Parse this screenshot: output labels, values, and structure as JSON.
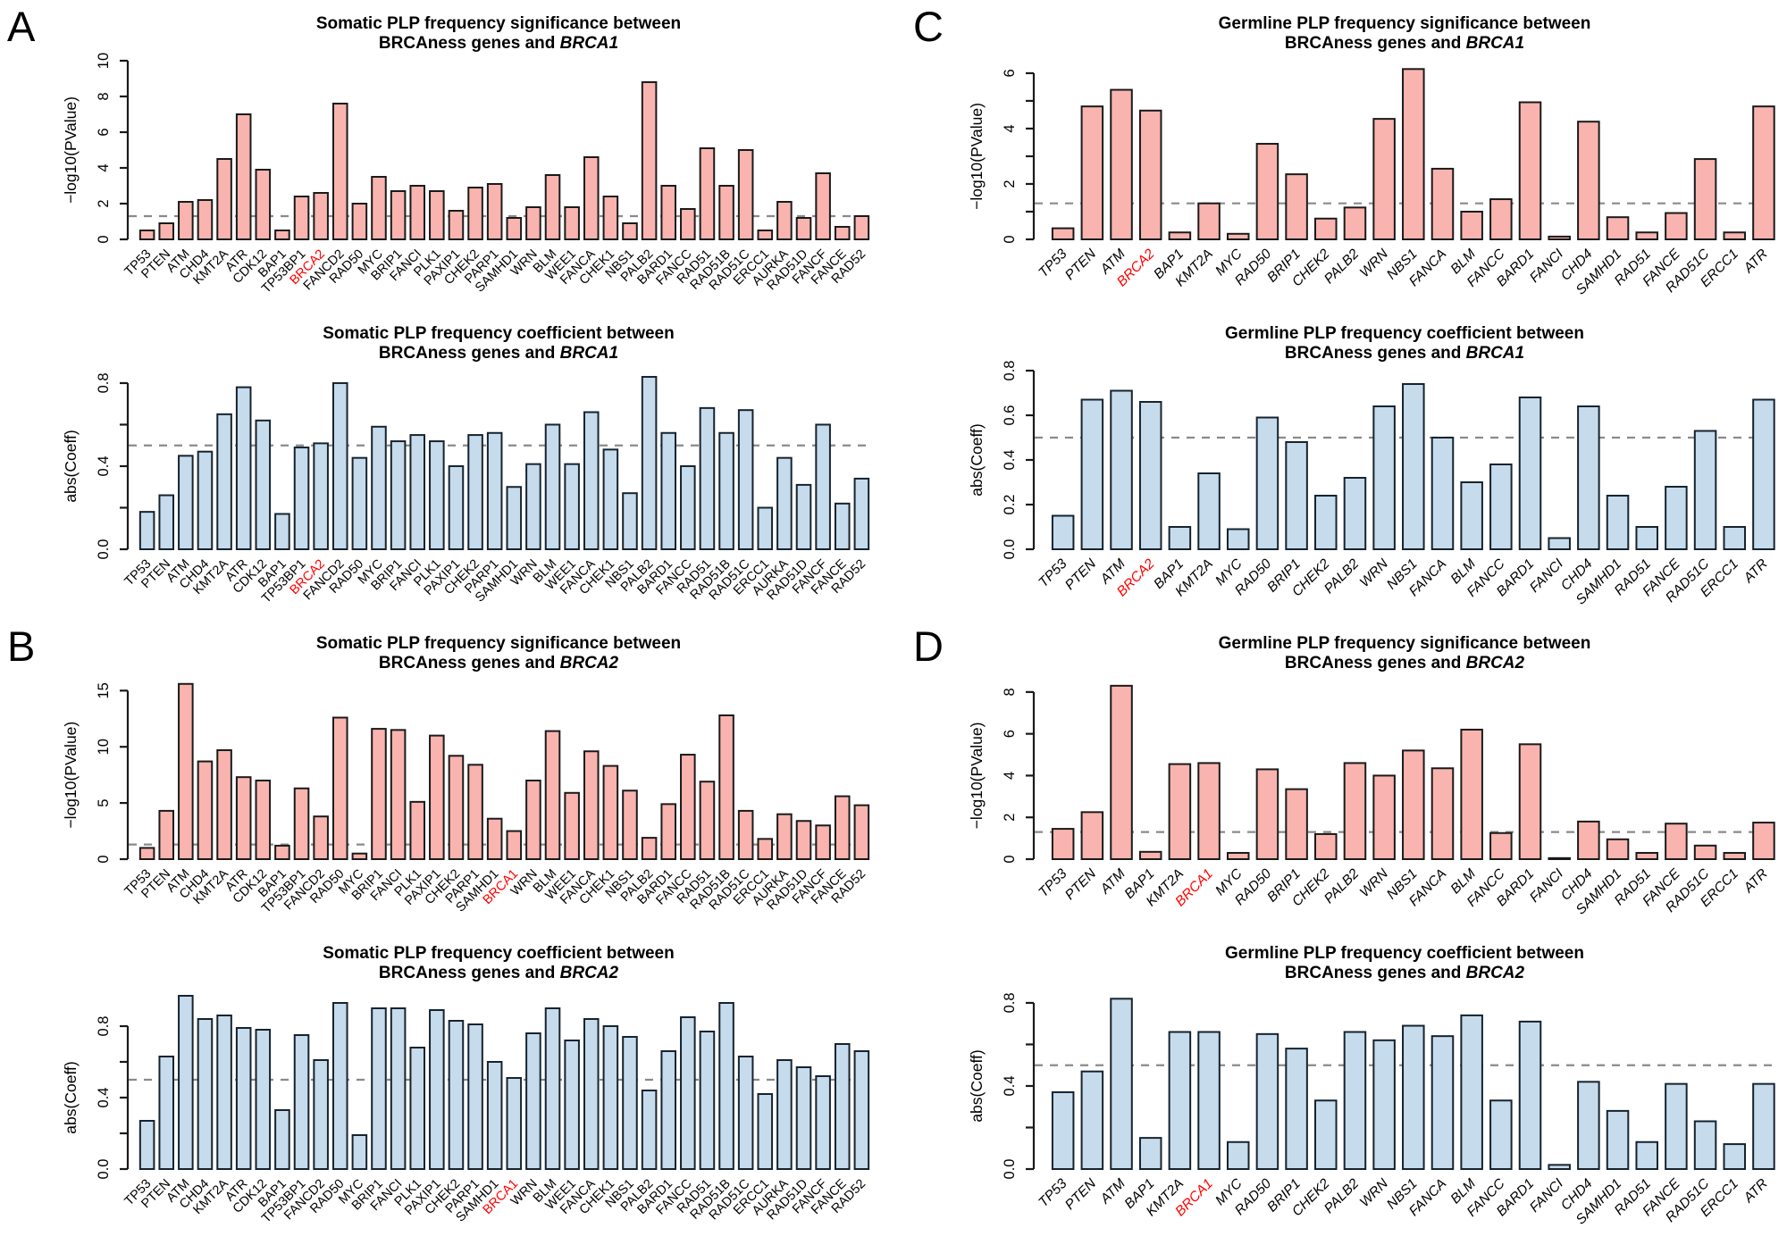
{
  "figure": {
    "background": "#ffffff",
    "colors": {
      "significance_bar_fill": "#F9B4AF",
      "significance_bar_stroke": "#1a1a1a",
      "coefficient_bar_fill": "#C6DBEC",
      "coefficient_bar_stroke": "#16232e",
      "axis": "#1a1a1a",
      "threshold_line": "#8a8a8a",
      "highlight_label": "#FF0000",
      "text": "#000000"
    }
  },
  "panels": [
    {
      "letter": "A"
    },
    {
      "letter": "B"
    },
    {
      "letter": "C"
    },
    {
      "letter": "D"
    }
  ],
  "chart_data": [
    {
      "id": "A-significance",
      "panel": "A",
      "type": "bar",
      "kind": "significance",
      "title_line1": "Somatic PLP frequency significance between",
      "title_line2_prefix": "BRCAness genes and ",
      "title_gene": "BRCA1",
      "ylabel": "−log10(PValue)",
      "ymax": 10,
      "yticks": [
        0,
        2,
        4,
        6,
        8,
        10
      ],
      "ytick_labels": [
        "0",
        "2",
        "4",
        "6",
        "8",
        "10"
      ],
      "yticks_minor": [],
      "threshold": 1.3,
      "grid": false,
      "italic_categories": false,
      "highlight_category": "BRCA2",
      "categories": [
        "TP53",
        "PTEN",
        "ATM",
        "CHD4",
        "KMT2A",
        "ATR",
        "CDK12",
        "BAP1",
        "TP53BP1",
        "BRCA2",
        "FANCD2",
        "RAD50",
        "MYC",
        "BRIP1",
        "FANCI",
        "PLK1",
        "PAXIP1",
        "CHEK2",
        "PARP1",
        "SAMHD1",
        "WRN",
        "BLM",
        "WEE1",
        "FANCA",
        "CHEK1",
        "NBS1",
        "PALB2",
        "BARD1",
        "FANCC",
        "RAD51",
        "RAD51B",
        "RAD51C",
        "ERCC1",
        "AURKA",
        "RAD51D",
        "FANCF",
        "FANCE",
        "RAD52"
      ],
      "values": [
        0.5,
        0.9,
        2.1,
        2.2,
        4.5,
        7.0,
        3.9,
        0.5,
        2.4,
        2.6,
        7.6,
        2.0,
        3.5,
        2.7,
        3.0,
        2.7,
        1.6,
        2.9,
        3.1,
        1.2,
        1.8,
        3.6,
        1.8,
        4.6,
        2.4,
        0.9,
        8.8,
        3.0,
        1.7,
        5.1,
        3.0,
        5.0,
        0.5,
        2.1,
        1.2,
        3.7,
        0.7,
        1.3
      ]
    },
    {
      "id": "A-coefficient",
      "panel": "A",
      "type": "bar",
      "kind": "coefficient",
      "title_line1": "Somatic PLP frequency coefficient between",
      "title_line2_prefix": "BRCAness genes and ",
      "title_gene": "BRCA1",
      "ylabel": "abs(Coeff)",
      "ymax": 0.86,
      "yticks": [
        0,
        0.4,
        0.8
      ],
      "ytick_labels": [
        "0.0",
        "0.4",
        "0.8"
      ],
      "yticks_minor": [
        0.2,
        0.6
      ],
      "threshold": 0.5,
      "grid": false,
      "italic_categories": false,
      "highlight_category": "BRCA2",
      "categories": [
        "TP53",
        "PTEN",
        "ATM",
        "CHD4",
        "KMT2A",
        "ATR",
        "CDK12",
        "BAP1",
        "TP53BP1",
        "BRCA2",
        "FANCD2",
        "RAD50",
        "MYC",
        "BRIP1",
        "FANCI",
        "PLK1",
        "PAXIP1",
        "CHEK2",
        "PARP1",
        "SAMHD1",
        "WRN",
        "BLM",
        "WEE1",
        "FANCA",
        "CHEK1",
        "NBS1",
        "PALB2",
        "BARD1",
        "FANCC",
        "RAD51",
        "RAD51B",
        "RAD51C",
        "ERCC1",
        "AURKA",
        "RAD51D",
        "FANCF",
        "FANCE",
        "RAD52"
      ],
      "values": [
        0.18,
        0.26,
        0.45,
        0.47,
        0.65,
        0.78,
        0.62,
        0.17,
        0.49,
        0.51,
        0.8,
        0.44,
        0.59,
        0.52,
        0.55,
        0.52,
        0.4,
        0.55,
        0.56,
        0.3,
        0.41,
        0.6,
        0.41,
        0.66,
        0.48,
        0.27,
        0.83,
        0.56,
        0.4,
        0.68,
        0.56,
        0.67,
        0.2,
        0.44,
        0.31,
        0.6,
        0.22,
        0.34
      ]
    },
    {
      "id": "B-significance",
      "panel": "B",
      "type": "bar",
      "kind": "significance",
      "title_line1": "Somatic PLP frequency significance between",
      "title_line2_prefix": "BRCAness genes and ",
      "title_gene": "BRCA2",
      "ylabel": "−log10(PValue)",
      "ymax": 15.9,
      "yticks": [
        0,
        5,
        10,
        15
      ],
      "ytick_labels": [
        "0",
        "5",
        "10",
        "15"
      ],
      "yticks_minor": [],
      "threshold": 1.3,
      "grid": false,
      "italic_categories": false,
      "highlight_category": "BRCA1",
      "categories": [
        "TP53",
        "PTEN",
        "ATM",
        "CHD4",
        "KMT2A",
        "ATR",
        "CDK12",
        "BAP1",
        "TP53BP1",
        "FANCD2",
        "RAD50",
        "MYC",
        "BRIP1",
        "FANCI",
        "PLK1",
        "PAXIP1",
        "CHEK2",
        "PARP1",
        "SAMHD1",
        "BRCA1",
        "WRN",
        "BLM",
        "WEE1",
        "FANCA",
        "CHEK1",
        "NBS1",
        "PALB2",
        "BARD1",
        "FANCC",
        "RAD51",
        "RAD51B",
        "RAD51C",
        "ERCC1",
        "AURKA",
        "RAD51D",
        "FANCF",
        "FANCE",
        "RAD52"
      ],
      "values": [
        1.0,
        4.3,
        15.6,
        8.7,
        9.7,
        7.3,
        7.0,
        1.2,
        6.3,
        3.8,
        12.6,
        0.5,
        11.6,
        11.5,
        5.1,
        11.0,
        9.2,
        8.4,
        3.6,
        2.5,
        7.0,
        11.4,
        5.9,
        9.6,
        8.3,
        6.1,
        1.9,
        4.9,
        9.3,
        6.9,
        12.8,
        4.3,
        1.8,
        4.0,
        3.4,
        3.0,
        5.6,
        4.8
      ]
    },
    {
      "id": "B-coefficient",
      "panel": "B",
      "type": "bar",
      "kind": "coefficient",
      "title_line1": "Somatic PLP frequency coefficient between",
      "title_line2_prefix": "BRCAness genes and ",
      "title_gene": "BRCA2",
      "ylabel": "abs(Coeff)",
      "ymax": 1.0,
      "yticks": [
        0,
        0.4,
        0.8
      ],
      "ytick_labels": [
        "0.0",
        "0.4",
        "0.8"
      ],
      "yticks_minor": [
        0.2,
        0.6
      ],
      "threshold": 0.5,
      "grid": false,
      "italic_categories": false,
      "highlight_category": "BRCA1",
      "categories": [
        "TP53",
        "PTEN",
        "ATM",
        "CHD4",
        "KMT2A",
        "ATR",
        "CDK12",
        "BAP1",
        "TP53BP1",
        "FANCD2",
        "RAD50",
        "MYC",
        "BRIP1",
        "FANCI",
        "PLK1",
        "PAXIP1",
        "CHEK2",
        "PARP1",
        "SAMHD1",
        "BRCA1",
        "WRN",
        "BLM",
        "WEE1",
        "FANCA",
        "CHEK1",
        "NBS1",
        "PALB2",
        "BARD1",
        "FANCC",
        "RAD51",
        "RAD51B",
        "RAD51C",
        "ERCC1",
        "AURKA",
        "RAD51D",
        "FANCF",
        "FANCE",
        "RAD52"
      ],
      "values": [
        0.27,
        0.63,
        0.97,
        0.84,
        0.86,
        0.79,
        0.78,
        0.33,
        0.75,
        0.61,
        0.93,
        0.19,
        0.9,
        0.9,
        0.68,
        0.89,
        0.83,
        0.81,
        0.6,
        0.51,
        0.76,
        0.9,
        0.72,
        0.84,
        0.8,
        0.74,
        0.44,
        0.66,
        0.85,
        0.77,
        0.93,
        0.63,
        0.42,
        0.61,
        0.57,
        0.52,
        0.7,
        0.66
      ]
    },
    {
      "id": "C-significance",
      "panel": "C",
      "type": "bar",
      "kind": "significance",
      "title_line1": "Germline PLP frequency significance between",
      "title_line2_prefix": "BRCAness genes and ",
      "title_gene": "BRCA1",
      "ylabel": "−log10(PValue)",
      "ymax": 6.45,
      "yticks": [
        0,
        2,
        4,
        6
      ],
      "ytick_labels": [
        "0",
        "2",
        "4",
        "6"
      ],
      "yticks_minor": [
        1,
        3,
        5
      ],
      "threshold": 1.3,
      "grid": false,
      "italic_categories": true,
      "highlight_category": "BRCA2",
      "categories": [
        "TP53",
        "PTEN",
        "ATM",
        "BRCA2",
        "BAP1",
        "KMT2A",
        "MYC",
        "RAD50",
        "BRIP1",
        "CHEK2",
        "PALB2",
        "WRN",
        "NBS1",
        "FANCA",
        "BLM",
        "FANCC",
        "BARD1",
        "FANCI",
        "CHD4",
        "SAMHD1",
        "RAD51",
        "FANCE",
        "RAD51C",
        "ERCC1",
        "ATR"
      ],
      "values": [
        0.4,
        4.8,
        5.4,
        4.65,
        0.25,
        1.3,
        0.2,
        3.45,
        2.35,
        0.75,
        1.15,
        4.35,
        6.15,
        2.55,
        1.0,
        1.45,
        4.95,
        0.1,
        4.25,
        0.8,
        0.25,
        0.95,
        2.9,
        0.25,
        4.8
      ]
    },
    {
      "id": "C-coefficient",
      "panel": "C",
      "type": "bar",
      "kind": "coefficient",
      "title_line1": "Germline PLP frequency coefficient between",
      "title_line2_prefix": "BRCAness genes and ",
      "title_gene": "BRCA1",
      "ylabel": "abs(Coeff)",
      "ymax": 0.8,
      "yticks": [
        0,
        0.2,
        0.4,
        0.6,
        0.8
      ],
      "ytick_labels": [
        "0.0",
        "0.2",
        "0.4",
        "0.6",
        "0.8"
      ],
      "yticks_minor": [],
      "threshold": 0.5,
      "grid": false,
      "italic_categories": true,
      "highlight_category": "BRCA2",
      "categories": [
        "TP53",
        "PTEN",
        "ATM",
        "BRCA2",
        "BAP1",
        "KMT2A",
        "MYC",
        "RAD50",
        "BRIP1",
        "CHEK2",
        "PALB2",
        "WRN",
        "NBS1",
        "FANCA",
        "BLM",
        "FANCC",
        "BARD1",
        "FANCI",
        "CHD4",
        "SAMHD1",
        "RAD51",
        "FANCE",
        "RAD51C",
        "ERCC1",
        "ATR"
      ],
      "values": [
        0.15,
        0.67,
        0.71,
        0.66,
        0.1,
        0.34,
        0.09,
        0.59,
        0.48,
        0.24,
        0.32,
        0.64,
        0.74,
        0.5,
        0.3,
        0.38,
        0.68,
        0.05,
        0.64,
        0.24,
        0.1,
        0.28,
        0.53,
        0.1,
        0.67
      ]
    },
    {
      "id": "D-significance",
      "panel": "D",
      "type": "bar",
      "kind": "significance",
      "title_line1": "Germline PLP frequency significance between",
      "title_line2_prefix": "BRCAness genes and ",
      "title_gene": "BRCA2",
      "ylabel": "−log10(PValue)",
      "ymax": 8.55,
      "yticks": [
        0,
        2,
        4,
        6,
        8
      ],
      "ytick_labels": [
        "0",
        "2",
        "4",
        "6",
        "8"
      ],
      "yticks_minor": [],
      "threshold": 1.3,
      "grid": false,
      "italic_categories": true,
      "highlight_category": "BRCA1",
      "categories": [
        "TP53",
        "PTEN",
        "ATM",
        "BAP1",
        "KMT2A",
        "BRCA1",
        "MYC",
        "RAD50",
        "BRIP1",
        "CHEK2",
        "PALB2",
        "WRN",
        "NBS1",
        "FANCA",
        "BLM",
        "FANCC",
        "BARD1",
        "FANCI",
        "CHD4",
        "SAMHD1",
        "RAD51",
        "FANCE",
        "RAD51C",
        "ERCC1",
        "ATR"
      ],
      "values": [
        1.45,
        2.25,
        8.3,
        0.35,
        4.55,
        4.6,
        0.3,
        4.3,
        3.35,
        1.2,
        4.6,
        4.0,
        5.2,
        4.35,
        6.2,
        1.25,
        5.5,
        0.05,
        1.8,
        0.95,
        0.3,
        1.7,
        0.65,
        0.3,
        1.75
      ]
    },
    {
      "id": "D-coefficient",
      "panel": "D",
      "type": "bar",
      "kind": "coefficient",
      "title_line1": "Germline PLP frequency coefficient between",
      "title_line2_prefix": "BRCAness genes and ",
      "title_gene": "BRCA2",
      "ylabel": "abs(Coeff)",
      "ymax": 0.86,
      "yticks": [
        0,
        0.4,
        0.8
      ],
      "ytick_labels": [
        "0.0",
        "0.4",
        "0.8"
      ],
      "yticks_minor": [
        0.2,
        0.6
      ],
      "threshold": 0.5,
      "grid": false,
      "italic_categories": true,
      "highlight_category": "BRCA1",
      "categories": [
        "TP53",
        "PTEN",
        "ATM",
        "BAP1",
        "KMT2A",
        "BRCA1",
        "MYC",
        "RAD50",
        "BRIP1",
        "CHEK2",
        "PALB2",
        "WRN",
        "NBS1",
        "FANCA",
        "BLM",
        "FANCC",
        "BARD1",
        "FANCI",
        "CHD4",
        "SAMHD1",
        "RAD51",
        "FANCE",
        "RAD51C",
        "ERCC1",
        "ATR"
      ],
      "values": [
        0.37,
        0.47,
        0.82,
        0.15,
        0.66,
        0.66,
        0.13,
        0.65,
        0.58,
        0.33,
        0.66,
        0.62,
        0.69,
        0.64,
        0.74,
        0.33,
        0.71,
        0.02,
        0.42,
        0.28,
        0.13,
        0.41,
        0.23,
        0.12,
        0.41
      ]
    }
  ]
}
